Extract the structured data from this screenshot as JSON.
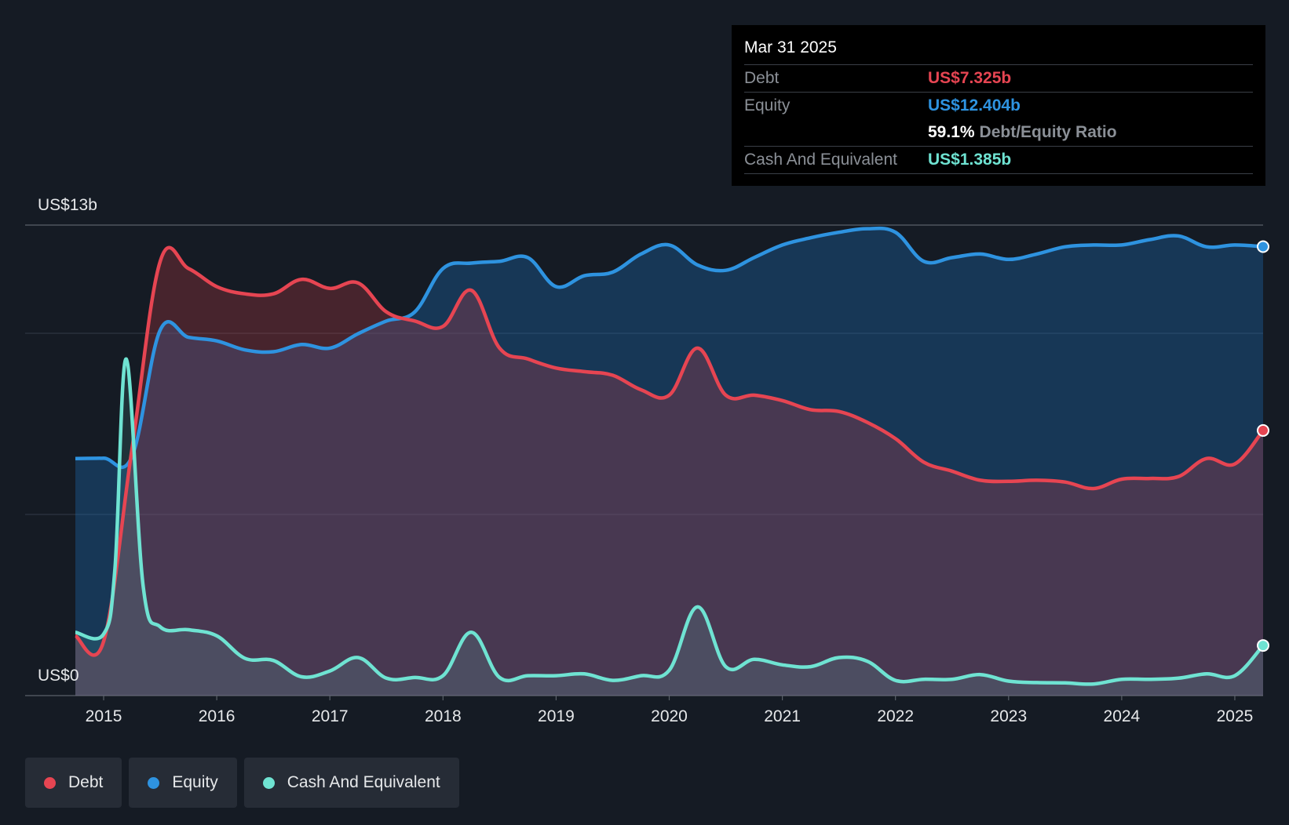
{
  "tooltip": {
    "date": "Mar 31 2025",
    "debt_label": "Debt",
    "debt_value": "US$7.325b",
    "equity_label": "Equity",
    "equity_value": "US$12.404b",
    "ratio_value": "59.1%",
    "ratio_label": "Debt/Equity Ratio",
    "cash_label": "Cash And Equivalent",
    "cash_value": "US$1.385b"
  },
  "legend": [
    {
      "label": "Debt",
      "color": "#e64552"
    },
    {
      "label": "Equity",
      "color": "#2e93e0"
    },
    {
      "label": "Cash And Equivalent",
      "color": "#6fe3d2"
    }
  ],
  "chart_data": {
    "type": "area",
    "y_top_label": "US$13b",
    "y_bottom_label": "US$0",
    "ylim": [
      0,
      13
    ],
    "xlim": [
      2014.75,
      2025.25
    ],
    "x_ticks": [
      "2015",
      "2016",
      "2017",
      "2018",
      "2019",
      "2020",
      "2021",
      "2022",
      "2023",
      "2024",
      "2025"
    ],
    "colors": {
      "debt": "#e64552",
      "equity": "#2e93e0",
      "cash": "#6fe3d2"
    },
    "series": [
      {
        "name": "Debt",
        "x": [
          2014.75,
          2015.0,
          2015.25,
          2015.5,
          2015.75,
          2016.0,
          2016.25,
          2016.5,
          2016.75,
          2017.0,
          2017.25,
          2017.5,
          2017.75,
          2018.0,
          2018.25,
          2018.5,
          2018.75,
          2019.0,
          2019.25,
          2019.5,
          2019.75,
          2020.0,
          2020.25,
          2020.5,
          2020.75,
          2021.0,
          2021.25,
          2021.5,
          2021.75,
          2022.0,
          2022.25,
          2022.5,
          2022.75,
          2023.0,
          2023.25,
          2023.5,
          2023.75,
          2024.0,
          2024.25,
          2024.5,
          2024.75,
          2025.0,
          2025.25
        ],
        "values": [
          1.65,
          1.5,
          6.8,
          12.0,
          11.8,
          11.3,
          11.1,
          11.1,
          11.5,
          11.25,
          11.4,
          10.6,
          10.35,
          10.2,
          11.2,
          9.6,
          9.3,
          9.05,
          8.95,
          8.85,
          8.45,
          8.3,
          9.6,
          8.3,
          8.3,
          8.15,
          7.9,
          7.85,
          7.55,
          7.1,
          6.45,
          6.2,
          5.95,
          5.92,
          5.95,
          5.9,
          5.72,
          5.98,
          6.0,
          6.05,
          6.55,
          6.4,
          7.325
        ]
      },
      {
        "name": "Equity",
        "x": [
          2014.75,
          2015.0,
          2015.25,
          2015.5,
          2015.75,
          2016.0,
          2016.25,
          2016.5,
          2016.75,
          2017.0,
          2017.25,
          2017.5,
          2017.75,
          2018.0,
          2018.25,
          2018.5,
          2018.75,
          2019.0,
          2019.25,
          2019.5,
          2019.75,
          2020.0,
          2020.25,
          2020.5,
          2020.75,
          2021.0,
          2021.25,
          2021.5,
          2021.75,
          2022.0,
          2022.25,
          2022.5,
          2022.75,
          2023.0,
          2023.25,
          2023.5,
          2023.75,
          2024.0,
          2024.25,
          2024.5,
          2024.75,
          2025.0,
          2025.25
        ],
        "values": [
          6.55,
          6.56,
          6.6,
          10.1,
          9.9,
          9.8,
          9.55,
          9.5,
          9.7,
          9.6,
          10.0,
          10.35,
          10.6,
          11.8,
          11.95,
          12.0,
          12.1,
          11.3,
          11.6,
          11.7,
          12.2,
          12.45,
          11.9,
          11.75,
          12.1,
          12.45,
          12.65,
          12.8,
          12.9,
          12.8,
          12.0,
          12.1,
          12.2,
          12.05,
          12.2,
          12.4,
          12.45,
          12.45,
          12.6,
          12.7,
          12.4,
          12.45,
          12.404
        ]
      },
      {
        "name": "Cash And Equivalent",
        "x": [
          2014.75,
          2015.0,
          2015.1,
          2015.2,
          2015.35,
          2015.5,
          2015.75,
          2016.0,
          2016.25,
          2016.5,
          2016.75,
          2017.0,
          2017.25,
          2017.5,
          2017.75,
          2018.0,
          2018.25,
          2018.5,
          2018.75,
          2019.0,
          2019.25,
          2019.5,
          2019.75,
          2020.0,
          2020.25,
          2020.5,
          2020.75,
          2021.0,
          2021.25,
          2021.5,
          2021.75,
          2022.0,
          2022.25,
          2022.5,
          2022.75,
          2023.0,
          2023.25,
          2023.5,
          2023.75,
          2024.0,
          2024.25,
          2024.5,
          2024.75,
          2025.0,
          2025.25
        ],
        "values": [
          1.75,
          1.7,
          3.5,
          9.3,
          3.0,
          1.9,
          1.82,
          1.65,
          1.03,
          0.97,
          0.52,
          0.68,
          1.05,
          0.48,
          0.5,
          0.55,
          1.75,
          0.5,
          0.55,
          0.55,
          0.6,
          0.42,
          0.55,
          0.7,
          2.45,
          0.8,
          1.0,
          0.85,
          0.8,
          1.05,
          0.95,
          0.42,
          0.45,
          0.45,
          0.58,
          0.4,
          0.36,
          0.35,
          0.32,
          0.45,
          0.45,
          0.48,
          0.6,
          0.55,
          1.385
        ]
      }
    ]
  }
}
